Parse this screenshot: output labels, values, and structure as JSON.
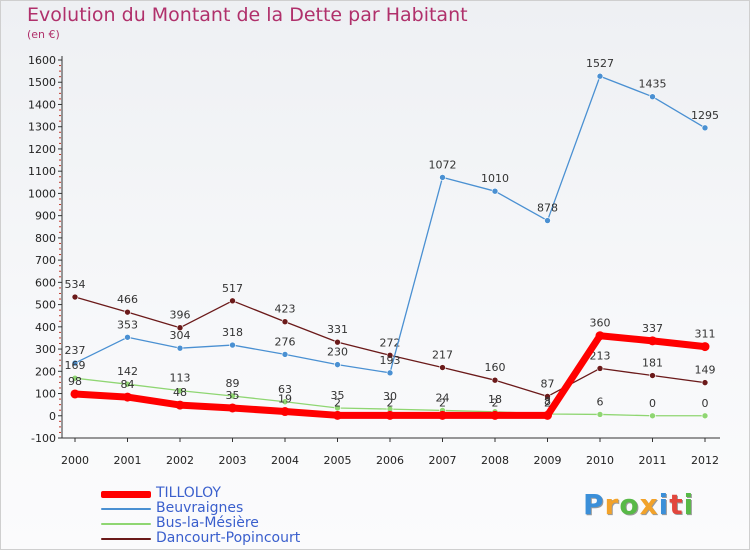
{
  "title": "Evolution du Montant de la Dette par Habitant",
  "unit": "(en €)",
  "brand": {
    "letters": [
      "P",
      "r",
      "o",
      "x",
      "i",
      "t",
      "i"
    ],
    "colors": [
      "#3b8fd9",
      "#f2a22a",
      "#58b947",
      "#f2a22a",
      "#3b8fd9",
      "#e2463d",
      "#58b947"
    ]
  },
  "chart_data": {
    "type": "line",
    "x": [
      "2000",
      "2001",
      "2002",
      "2003",
      "2004",
      "2005",
      "2006",
      "2007",
      "2008",
      "2009",
      "2010",
      "2011",
      "2012"
    ],
    "ylim": [
      -100,
      1600
    ],
    "yticks": [
      "-100",
      "0",
      "100",
      "200",
      "300",
      "400",
      "500",
      "600",
      "700",
      "800",
      "900",
      "1000",
      "1100",
      "1200",
      "1300",
      "1400",
      "1500",
      "1600"
    ],
    "grid": false,
    "legend_position": "bottom-left",
    "series": [
      {
        "name": "Dancourt-Popincourt",
        "color": "#6b1a1a",
        "width": 1.3,
        "values": [
          534,
          466,
          396,
          517,
          423,
          331,
          272,
          217,
          160,
          87,
          213,
          181,
          149
        ],
        "labels": [
          "534",
          "466",
          "396",
          "517",
          "423",
          "331",
          "272",
          "217",
          "160",
          "87",
          "213",
          "181",
          "149"
        ]
      },
      {
        "name": "Beuvraignes",
        "color": "#4a90d2",
        "width": 1.3,
        "values": [
          237,
          353,
          304,
          318,
          276,
          230,
          193,
          1072,
          1010,
          878,
          1527,
          1435,
          1295
        ],
        "labels": [
          "237",
          "353",
          "304",
          "318",
          "276",
          "230",
          "193",
          "1072",
          "1010",
          "878",
          "1527",
          "1435",
          "1295"
        ]
      },
      {
        "name": "Bus-la-Mésière",
        "color": "#8fd672",
        "width": 1.3,
        "values": [
          169,
          142,
          113,
          89,
          63,
          35,
          30,
          24,
          18,
          8,
          6,
          0,
          0
        ],
        "labels": [
          "169",
          "142",
          "113",
          "89",
          "63",
          "35",
          "30",
          "24",
          "18",
          "8",
          "6",
          "0",
          "0"
        ]
      },
      {
        "name": "TILLOLOY",
        "color": "#ff0000",
        "width": 7,
        "values": [
          98,
          84,
          48,
          35,
          19,
          2,
          2,
          2,
          2,
          2,
          360,
          337,
          311
        ],
        "labels": [
          "98",
          "84",
          "48",
          "35",
          "19",
          "2",
          "2",
          "2",
          "2",
          "2",
          "360",
          "337",
          "311"
        ]
      }
    ]
  }
}
